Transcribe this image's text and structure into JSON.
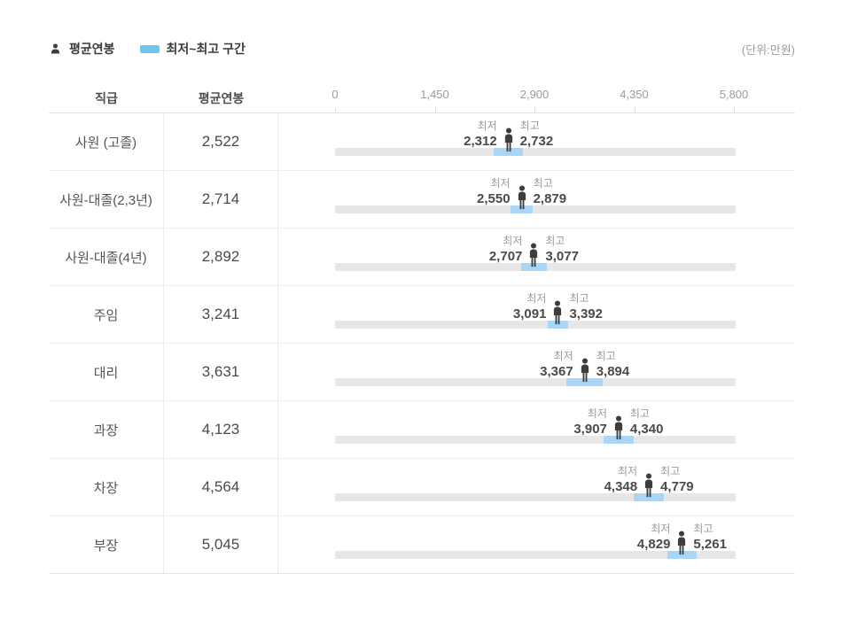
{
  "legend": {
    "avg_label": "평균연봉",
    "range_label": "최저~최고 구간",
    "unit_label": "(단위:만원)"
  },
  "labels": {
    "min": "최저",
    "max": "최고"
  },
  "table_header": {
    "position": "직급",
    "avg": "평균연봉"
  },
  "axis": {
    "max": 5800,
    "ticks": [
      {
        "label": "0",
        "value": 0
      },
      {
        "label": "1,450",
        "value": 1450
      },
      {
        "label": "2,900",
        "value": 2900
      },
      {
        "label": "4,350",
        "value": 4350
      },
      {
        "label": "5,800",
        "value": 5800
      }
    ]
  },
  "rows": [
    {
      "position": "사원 (고졸)",
      "avg": 2522,
      "avg_display": "2,522",
      "min": 2312,
      "min_display": "2,312",
      "max": 2732,
      "max_display": "2,732"
    },
    {
      "position": "사원-대졸(2,3년)",
      "avg": 2714,
      "avg_display": "2,714",
      "min": 2550,
      "min_display": "2,550",
      "max": 2879,
      "max_display": "2,879"
    },
    {
      "position": "사원-대졸(4년)",
      "avg": 2892,
      "avg_display": "2,892",
      "min": 2707,
      "min_display": "2,707",
      "max": 3077,
      "max_display": "3,077"
    },
    {
      "position": "주임",
      "avg": 3241,
      "avg_display": "3,241",
      "min": 3091,
      "min_display": "3,091",
      "max": 3392,
      "max_display": "3,392"
    },
    {
      "position": "대리",
      "avg": 3631,
      "avg_display": "3,631",
      "min": 3367,
      "min_display": "3,367",
      "max": 3894,
      "max_display": "3,894"
    },
    {
      "position": "과장",
      "avg": 4123,
      "avg_display": "4,123",
      "min": 3907,
      "min_display": "3,907",
      "max": 4340,
      "max_display": "4,340"
    },
    {
      "position": "차장",
      "avg": 4564,
      "avg_display": "4,564",
      "min": 4348,
      "min_display": "4,348",
      "max": 4779,
      "max_display": "4,779"
    },
    {
      "position": "부장",
      "avg": 5045,
      "avg_display": "5,045",
      "min": 4829,
      "min_display": "4,829",
      "max": 5261,
      "max_display": "5,261"
    }
  ],
  "colors": {
    "legend_blue": "#70c5f2",
    "range_blue": "#a9d5f7",
    "track_gray": "#e7e7e7",
    "icon_dark": "#3d3d3d"
  },
  "chart_data": {
    "type": "bar",
    "variant": "horizontal-range-with-average-marker",
    "title": "직급별 평균연봉 및 최저~최고 구간",
    "unit": "만원",
    "categories": [
      "사원 (고졸)",
      "사원-대졸(2,3년)",
      "사원-대졸(4년)",
      "주임",
      "대리",
      "과장",
      "차장",
      "부장"
    ],
    "series": [
      {
        "name": "평균연봉",
        "values": [
          2522,
          2714,
          2892,
          3241,
          3631,
          4123,
          4564,
          5045
        ]
      },
      {
        "name": "최저",
        "values": [
          2312,
          2550,
          2707,
          3091,
          3367,
          3907,
          4348,
          4829
        ]
      },
      {
        "name": "최고",
        "values": [
          2732,
          2879,
          3077,
          3392,
          3894,
          4340,
          4779,
          5261
        ]
      }
    ],
    "xlim": [
      0,
      5800
    ],
    "x_ticks": [
      0,
      1450,
      2900,
      4350,
      5800
    ],
    "legend_position": "top-left",
    "grid": false
  }
}
